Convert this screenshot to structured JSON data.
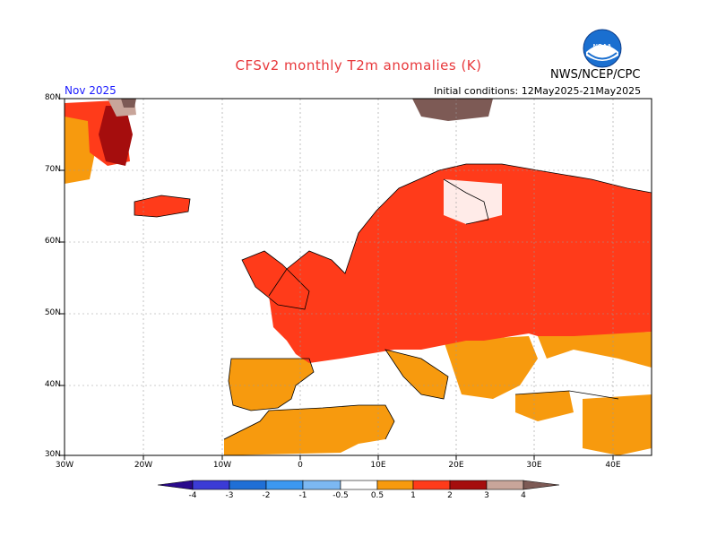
{
  "header": {
    "title": "CFSv2 monthly T2m anomalies (K)",
    "agency": "NWS/NCEP/CPC",
    "month": "Nov 2025",
    "initial_conditions": "Initial conditions: 12May2025-21May2025"
  },
  "axes": {
    "lat_labels": [
      "80N",
      "70N",
      "60N",
      "50N",
      "40N",
      "30N"
    ],
    "lon_labels": [
      "30W",
      "20W",
      "10W",
      "0",
      "10E",
      "20E",
      "30E",
      "40E"
    ]
  },
  "colorbar": {
    "labels": [
      "-4",
      "-3",
      "-2",
      "-1",
      "-0.5",
      "0.5",
      "1",
      "2",
      "3",
      "4"
    ],
    "colors": [
      "#2a0a8c",
      "#3b3bd6",
      "#1f6fd6",
      "#3c98f0",
      "#7cb8f2",
      "#ffffff",
      "#f79a0e",
      "#ff3b1a",
      "#a50d0d",
      "#c8a59a",
      "#7d5a55"
    ]
  },
  "map_colors": {
    "orange": "#f79a0e",
    "red": "#ff3b1a",
    "dark_red": "#a50d0d",
    "pink_brown": "#c8a59a",
    "brown": "#7d5a55"
  }
}
